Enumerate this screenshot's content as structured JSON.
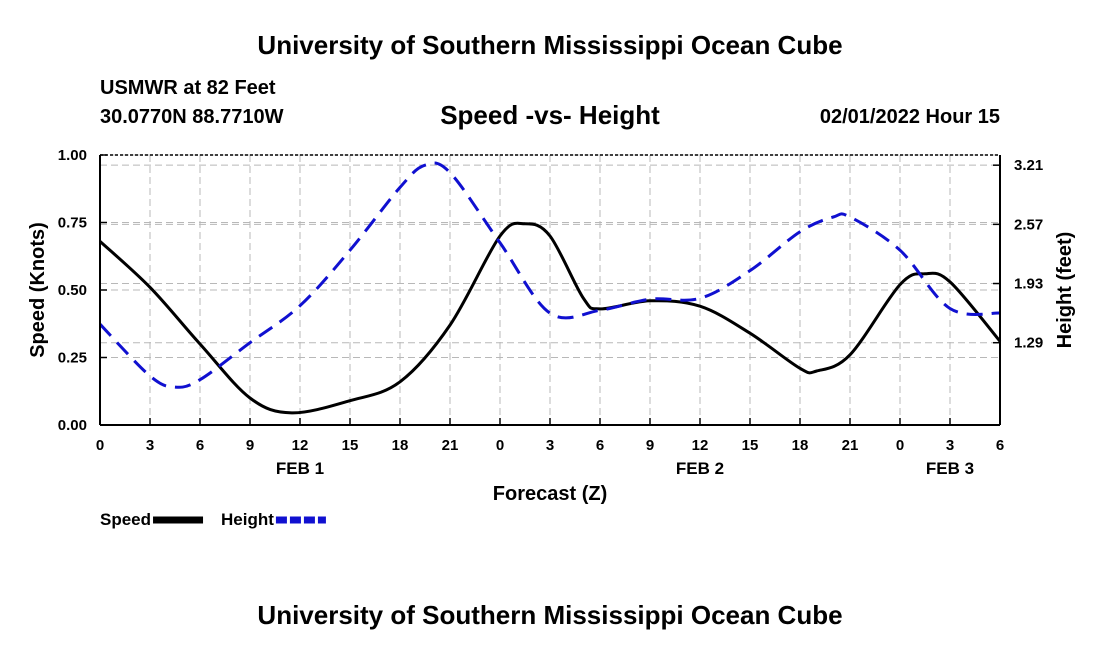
{
  "header": {
    "title": "University of Southern Mississippi Ocean Cube",
    "station": "USMWR at 82 Feet",
    "coordinates": "30.0770N  88.7710W",
    "subtitle": "Speed -vs- Height",
    "datetime": "02/01/2022 Hour 15"
  },
  "footer": {
    "title": "University of Southern Mississippi Ocean Cube"
  },
  "chart_data": {
    "type": "line",
    "title": "Speed -vs- Height",
    "xlabel": "Forecast (Z)",
    "ylabel": "Speed (Knots)",
    "y2label": "Height (feet)",
    "xlim": [
      0,
      54
    ],
    "ylim": [
      0,
      1.0
    ],
    "y2lim": [
      0.4,
      3.32
    ],
    "grid": true,
    "x_ticks": [
      {
        "x": 0,
        "label": "0"
      },
      {
        "x": 3,
        "label": "3"
      },
      {
        "x": 6,
        "label": "6"
      },
      {
        "x": 9,
        "label": "9"
      },
      {
        "x": 12,
        "label": "12"
      },
      {
        "x": 15,
        "label": "15"
      },
      {
        "x": 18,
        "label": "18"
      },
      {
        "x": 21,
        "label": "21"
      },
      {
        "x": 24,
        "label": "0"
      },
      {
        "x": 27,
        "label": "3"
      },
      {
        "x": 30,
        "label": "6"
      },
      {
        "x": 33,
        "label": "9"
      },
      {
        "x": 36,
        "label": "12"
      },
      {
        "x": 39,
        "label": "15"
      },
      {
        "x": 42,
        "label": "18"
      },
      {
        "x": 45,
        "label": "21"
      },
      {
        "x": 48,
        "label": "0"
      },
      {
        "x": 51,
        "label": "3"
      },
      {
        "x": 54,
        "label": "6"
      }
    ],
    "day_labels": [
      {
        "x": 12,
        "label": "FEB 1"
      },
      {
        "x": 36,
        "label": "FEB 2"
      },
      {
        "x": 51,
        "label": "FEB 3"
      }
    ],
    "y_ticks": [
      "0.00",
      "0.25",
      "0.50",
      "0.75",
      "1.00"
    ],
    "y_tick_values": [
      0,
      0.25,
      0.5,
      0.75,
      1.0
    ],
    "y2_ticks": [
      "1.29",
      "1.93",
      "2.57",
      "3.21"
    ],
    "y2_tick_values": [
      1.29,
      1.93,
      2.57,
      3.21
    ],
    "legend": [
      {
        "name": "Speed",
        "color": "#000000",
        "style": "solid"
      },
      {
        "name": "Height",
        "color": "#1010d0",
        "style": "dashed"
      }
    ],
    "series": [
      {
        "name": "Speed",
        "axis": "left",
        "color": "#000000",
        "dash": false,
        "x": [
          0,
          3,
          6,
          9,
          11.5,
          15,
          18,
          21,
          24,
          25.5,
          27,
          29,
          30,
          33,
          36,
          39,
          42,
          43,
          45,
          48,
          49.5,
          51,
          54
        ],
        "y": [
          0.68,
          0.51,
          0.3,
          0.1,
          0.045,
          0.09,
          0.16,
          0.37,
          0.7,
          0.745,
          0.7,
          0.47,
          0.43,
          0.46,
          0.44,
          0.34,
          0.21,
          0.2,
          0.26,
          0.52,
          0.56,
          0.53,
          0.31
        ]
      },
      {
        "name": "Height",
        "axis": "right",
        "color": "#1010d0",
        "dash": true,
        "x": [
          0,
          3,
          4.5,
          6,
          9,
          12,
          15,
          18,
          19.5,
          21,
          24,
          27,
          30,
          33,
          36,
          39,
          42,
          44,
          45,
          48,
          51,
          54
        ],
        "y": [
          1.49,
          0.93,
          0.81,
          0.89,
          1.29,
          1.69,
          2.29,
          2.97,
          3.21,
          3.13,
          2.37,
          1.61,
          1.64,
          1.76,
          1.77,
          2.07,
          2.49,
          2.65,
          2.65,
          2.29,
          1.66,
          1.61
        ]
      }
    ]
  }
}
